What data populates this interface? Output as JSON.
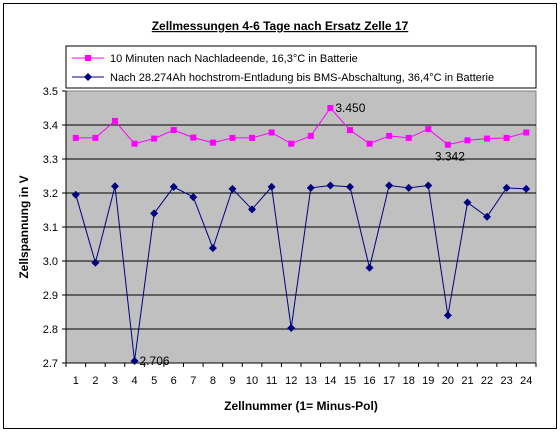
{
  "chart_data": {
    "type": "line",
    "title": "Zellmessungen 4-6 Tage nach Ersatz Zelle 17",
    "xlabel": "Zellnummer (1= Minus-Pol)",
    "ylabel": "Zellspannung in V",
    "categories": [
      "1",
      "2",
      "3",
      "4",
      "5",
      "6",
      "7",
      "8",
      "9",
      "10",
      "11",
      "12",
      "13",
      "14",
      "15",
      "16",
      "17",
      "18",
      "19",
      "20",
      "21",
      "22",
      "23",
      "24"
    ],
    "ylim": [
      2.7,
      3.5
    ],
    "yticks": [
      "2.7",
      "2.8",
      "2.9",
      "3.0",
      "3.1",
      "3.2",
      "3.3",
      "3.4",
      "3.5"
    ],
    "grid": "horizontal",
    "legend_position": "top",
    "series": [
      {
        "name": "10 Minuten nach Nachladeende, 16,3°C in Batterie",
        "color": "#ff00ff",
        "marker": "square",
        "values": [
          3.362,
          3.362,
          3.412,
          3.345,
          3.36,
          3.385,
          3.363,
          3.348,
          3.362,
          3.362,
          3.378,
          3.345,
          3.368,
          3.45,
          3.385,
          3.345,
          3.368,
          3.362,
          3.388,
          3.342,
          3.355,
          3.36,
          3.362,
          3.378
        ]
      },
      {
        "name": "Nach 28.274Ah hochstrom-Entladung bis BMS-Abschaltung, 36,4°C in Batterie",
        "color": "#000080",
        "marker": "diamond",
        "values": [
          3.195,
          2.995,
          3.22,
          2.706,
          3.14,
          3.218,
          3.188,
          3.038,
          3.212,
          3.152,
          3.218,
          2.803,
          3.215,
          3.222,
          3.218,
          2.98,
          3.222,
          3.215,
          3.222,
          2.84,
          3.172,
          3.13,
          3.215,
          3.212
        ]
      }
    ],
    "annotations": [
      {
        "series": 0,
        "index": 13,
        "text": "3.450"
      },
      {
        "series": 0,
        "index": 19,
        "text": "3.342"
      },
      {
        "series": 1,
        "index": 3,
        "text": "2.706"
      }
    ]
  }
}
